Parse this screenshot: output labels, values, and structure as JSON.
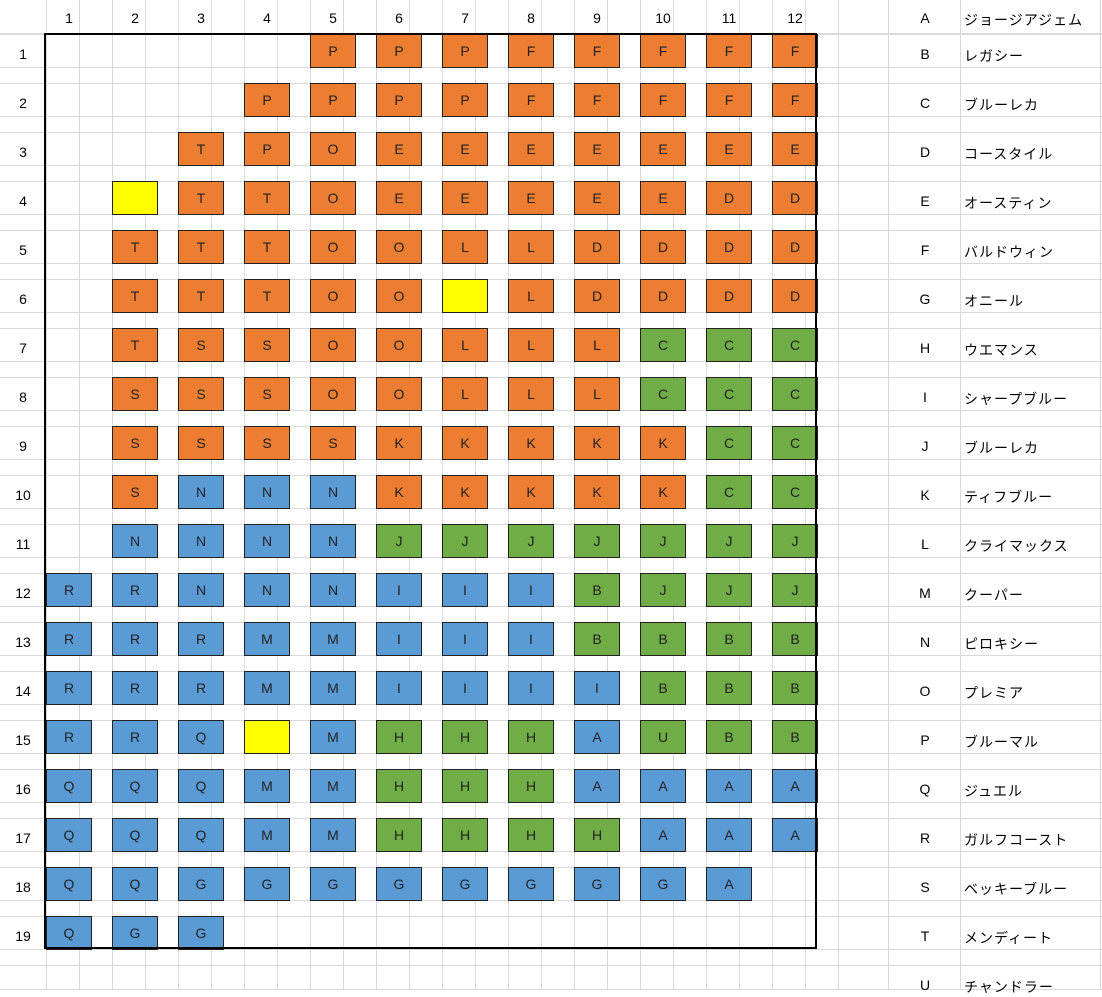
{
  "columns": [
    "1",
    "2",
    "3",
    "4",
    "5",
    "6",
    "7",
    "8",
    "9",
    "10",
    "11",
    "12"
  ],
  "rows": [
    "1",
    "2",
    "3",
    "4",
    "5",
    "6",
    "7",
    "8",
    "9",
    "10",
    "11",
    "12",
    "13",
    "14",
    "15",
    "16",
    "17",
    "18",
    "19"
  ],
  "colors": {
    "orange": "#ED7D31",
    "green": "#70AD47",
    "blue": "#5B9BD5",
    "yellow": "#FFFF00",
    "grid_line": "#D9D9D9"
  },
  "group_colors": {
    "P": "orange",
    "F": "orange",
    "T": "orange",
    "O": "orange",
    "E": "orange",
    "D": "orange",
    "L": "orange",
    "S": "orange",
    "K": "orange",
    "C": "green",
    "J": "green",
    "B": "green",
    "H": "green",
    "U": "green",
    "N": "blue",
    "R": "blue",
    "I": "blue",
    "M": "blue",
    "Q": "blue",
    "A": "blue",
    "G": "blue"
  },
  "grid": [
    [
      "",
      "",
      "",
      "",
      "P",
      "P",
      "P",
      "F",
      "F",
      "F",
      "F",
      "F"
    ],
    [
      "",
      "",
      "",
      "P",
      "P",
      "P",
      "P",
      "F",
      "F",
      "F",
      "F",
      "F"
    ],
    [
      "",
      "",
      "T",
      "P",
      "O",
      "E",
      "E",
      "E",
      "E",
      "E",
      "E",
      "E"
    ],
    [
      "",
      "*",
      "T",
      "T",
      "O",
      "E",
      "E",
      "E",
      "E",
      "E",
      "D",
      "D"
    ],
    [
      "",
      "T",
      "T",
      "T",
      "O",
      "O",
      "L",
      "L",
      "D",
      "D",
      "D",
      "D"
    ],
    [
      "",
      "T",
      "T",
      "T",
      "O",
      "O",
      "*",
      "L",
      "D",
      "D",
      "D",
      "D"
    ],
    [
      "",
      "T",
      "S",
      "S",
      "O",
      "O",
      "L",
      "L",
      "L",
      "C",
      "C",
      "C"
    ],
    [
      "",
      "S",
      "S",
      "S",
      "O",
      "O",
      "L",
      "L",
      "L",
      "C",
      "C",
      "C"
    ],
    [
      "",
      "S",
      "S",
      "S",
      "S",
      "K",
      "K",
      "K",
      "K",
      "K",
      "C",
      "C"
    ],
    [
      "",
      "S",
      "N",
      "N",
      "N",
      "K",
      "K",
      "K",
      "K",
      "K",
      "C",
      "C"
    ],
    [
      "",
      "N",
      "N",
      "N",
      "N",
      "J",
      "J",
      "J",
      "J",
      "J",
      "J",
      "J"
    ],
    [
      "R",
      "R",
      "N",
      "N",
      "N",
      "I",
      "I",
      "I",
      "B",
      "J",
      "J",
      "J"
    ],
    [
      "R",
      "R",
      "R",
      "M",
      "M",
      "I",
      "I",
      "I",
      "B",
      "B",
      "B",
      "B"
    ],
    [
      "R",
      "R",
      "R",
      "M",
      "M",
      "I",
      "I",
      "I",
      "I",
      "B",
      "B",
      "B"
    ],
    [
      "R",
      "R",
      "Q",
      "*",
      "M",
      "H",
      "H",
      "H",
      "A",
      "U",
      "B",
      "B"
    ],
    [
      "Q",
      "Q",
      "Q",
      "M",
      "M",
      "H",
      "H",
      "H",
      "A",
      "A",
      "A",
      "A"
    ],
    [
      "Q",
      "Q",
      "Q",
      "M",
      "M",
      "H",
      "H",
      "H",
      "H",
      "A",
      "A",
      "A"
    ],
    [
      "Q",
      "Q",
      "G",
      "G",
      "G",
      "G",
      "G",
      "G",
      "G",
      "G",
      "A",
      ""
    ],
    [
      "Q",
      "G",
      "G",
      "",
      "",
      "",
      "",
      "",
      "",
      "",
      "",
      ""
    ]
  ],
  "legend": [
    {
      "key": "A",
      "name": "ジョージアジェム"
    },
    {
      "key": "B",
      "name": "レガシー"
    },
    {
      "key": "C",
      "name": "ブルーレカ"
    },
    {
      "key": "D",
      "name": "コースタイル"
    },
    {
      "key": "E",
      "name": "オースティン"
    },
    {
      "key": "F",
      "name": "バルドウィン"
    },
    {
      "key": "G",
      "name": "オニール"
    },
    {
      "key": "H",
      "name": "ウエマンス"
    },
    {
      "key": "I",
      "name": "シャープブルー"
    },
    {
      "key": "J",
      "name": "ブルーレカ"
    },
    {
      "key": "K",
      "name": "ティフブルー"
    },
    {
      "key": "L",
      "name": "クライマックス"
    },
    {
      "key": "M",
      "name": "クーパー"
    },
    {
      "key": "N",
      "name": "ピロキシー"
    },
    {
      "key": "O",
      "name": "プレミア"
    },
    {
      "key": "P",
      "name": "ブルーマル"
    },
    {
      "key": "Q",
      "name": "ジュエル"
    },
    {
      "key": "R",
      "name": "ガルフコースト"
    },
    {
      "key": "S",
      "name": "ベッキーブルー"
    },
    {
      "key": "T",
      "name": "メンディート"
    },
    {
      "key": "U",
      "name": "チャンドラー"
    }
  ]
}
